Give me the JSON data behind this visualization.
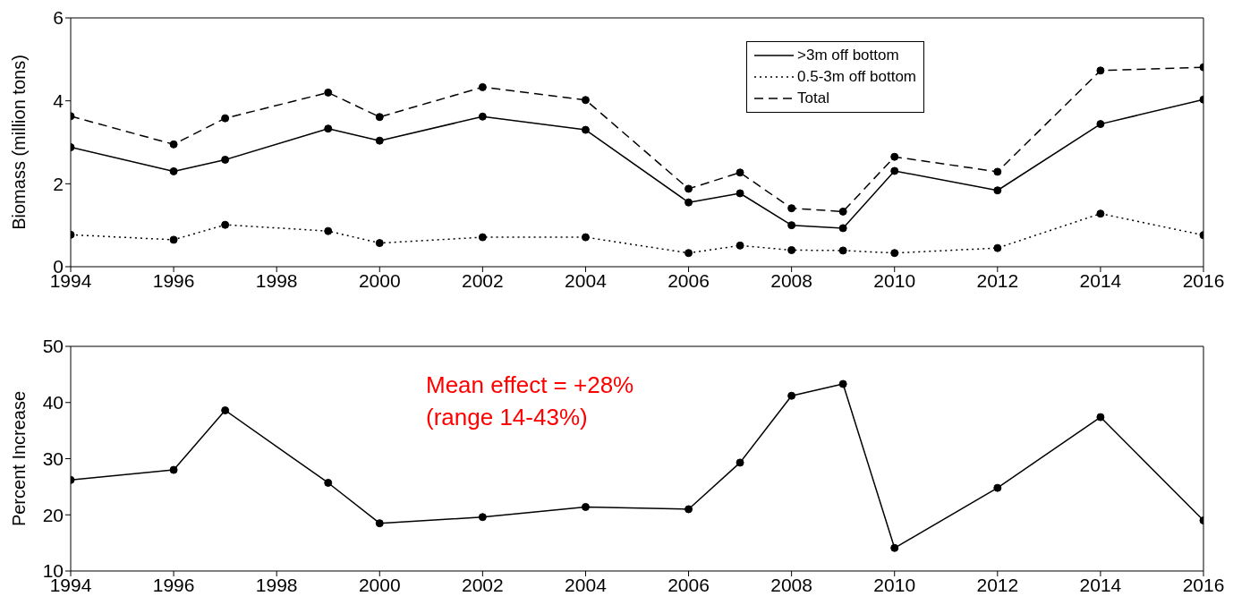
{
  "chart_data": [
    {
      "type": "line",
      "ylabel": "Biomass (million tons)",
      "x": [
        1994,
        1996,
        1997,
        1999,
        2000,
        2002,
        2004,
        2006,
        2007,
        2008,
        2009,
        2010,
        2012,
        2014,
        2016
      ],
      "series": [
        {
          "name": ">3m off bottom",
          "color": "#000000",
          "line_style": "solid",
          "values": [
            2.88,
            2.3,
            2.58,
            3.33,
            3.04,
            3.62,
            3.3,
            1.55,
            1.77,
            1.0,
            0.93,
            2.31,
            1.84,
            3.44,
            4.03
          ]
        },
        {
          "name": "0.5-3m off bottom",
          "color": "#000000",
          "line_style": "dotted",
          "values": [
            0.77,
            0.65,
            1.01,
            0.86,
            0.57,
            0.71,
            0.71,
            0.33,
            0.51,
            0.4,
            0.39,
            0.33,
            0.45,
            1.28,
            0.76
          ]
        },
        {
          "name": "Total",
          "color": "#000000",
          "line_style": "dashed",
          "values": [
            3.63,
            2.95,
            3.58,
            4.2,
            3.61,
            4.33,
            4.02,
            1.88,
            2.27,
            1.41,
            1.33,
            2.65,
            2.29,
            4.73,
            4.81
          ]
        }
      ],
      "marker": "circle",
      "legend": "top right",
      "xlim": [
        1994,
        2016
      ],
      "xticks": [
        1994,
        1996,
        1998,
        2000,
        2002,
        2004,
        2006,
        2008,
        2010,
        2012,
        2014,
        2016
      ],
      "ylim": [
        0,
        6
      ],
      "yticks": [
        0,
        2,
        4,
        6
      ]
    },
    {
      "type": "line",
      "ylabel": "Percent Increase",
      "x": [
        1994,
        1996,
        1997,
        1999,
        2000,
        2002,
        2004,
        2006,
        2007,
        2008,
        2009,
        2010,
        2012,
        2014,
        2016
      ],
      "values": [
        26.2,
        28,
        38.6,
        25.7,
        18.5,
        19.6,
        21.4,
        21.0,
        29.3,
        41.2,
        43.3,
        14.1,
        24.8,
        37.4,
        19.0
      ],
      "color": "#000000",
      "line_style": "solid",
      "marker": "circle",
      "annotations": [
        "Mean effect = +28%",
        "(range 14-43%)"
      ],
      "xlim": [
        1994,
        2016
      ],
      "xticks": [
        1994,
        1996,
        1998,
        2000,
        2002,
        2004,
        2006,
        2008,
        2010,
        2012,
        2014,
        2016
      ],
      "ylim": [
        10,
        50
      ],
      "yticks": [
        10,
        20,
        30,
        40,
        50
      ]
    }
  ]
}
